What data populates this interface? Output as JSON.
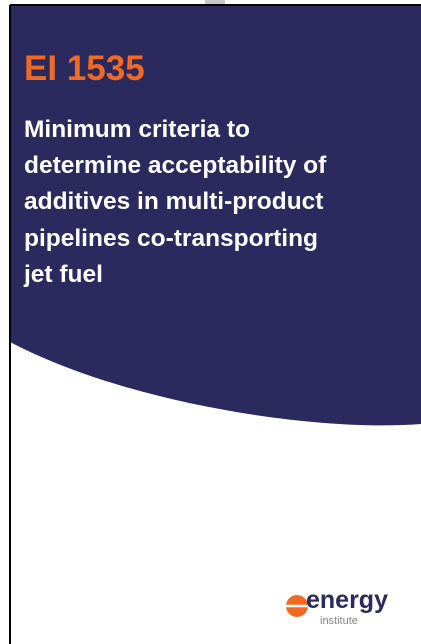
{
  "header": {
    "code": "EI 1535",
    "title_lines": [
      "Minimum criteria to",
      "determine acceptability of",
      "additives in multi-product",
      "pipelines co-transporting",
      "jet fuel"
    ]
  },
  "logo": {
    "name": "energy",
    "sub": "institute"
  }
}
